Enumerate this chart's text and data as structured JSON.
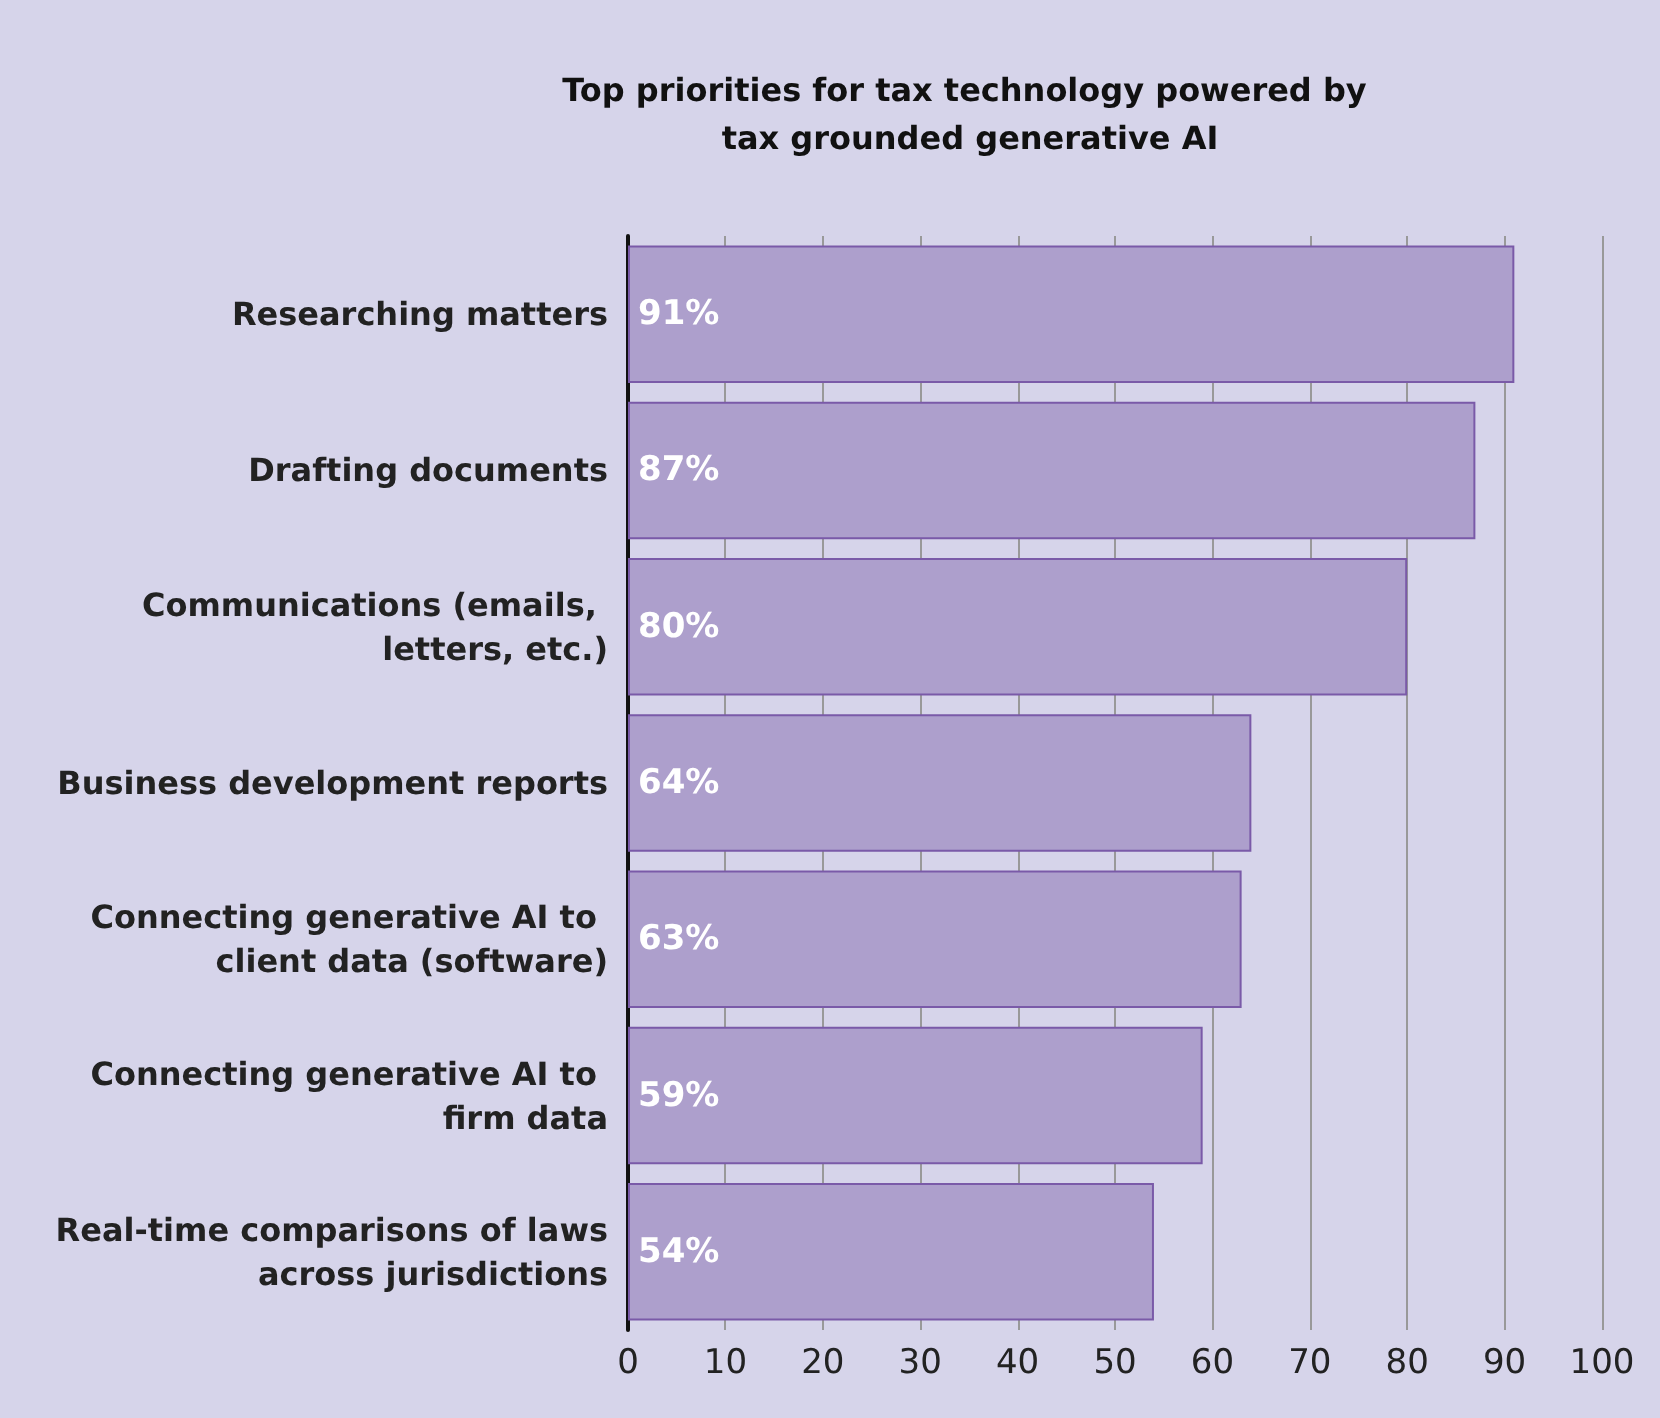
{
  "chart_data": {
    "type": "bar",
    "orientation": "horizontal",
    "title": "Top priorities for tax technology powered by tax grounded generative AI",
    "categories": [
      "Researching matters",
      "Drafting documents",
      "Communications (emails, letters, etc.)",
      "Business development reports",
      "Connecting generative AI to client data (software)",
      "Connecting generative AI to firm data",
      "Real-time comparisons of laws across jurisdictions"
    ],
    "values": [
      91,
      87,
      80,
      64,
      63,
      59,
      54
    ],
    "value_labels": [
      "91%",
      "87%",
      "80%",
      "64%",
      "63%",
      "59%",
      "54%"
    ],
    "color": "#ad9fcc",
    "xlim": [
      0,
      100
    ],
    "xticks": [
      0,
      10,
      20,
      30,
      40,
      50,
      60,
      70,
      80,
      90,
      100
    ],
    "grid": "x"
  }
}
